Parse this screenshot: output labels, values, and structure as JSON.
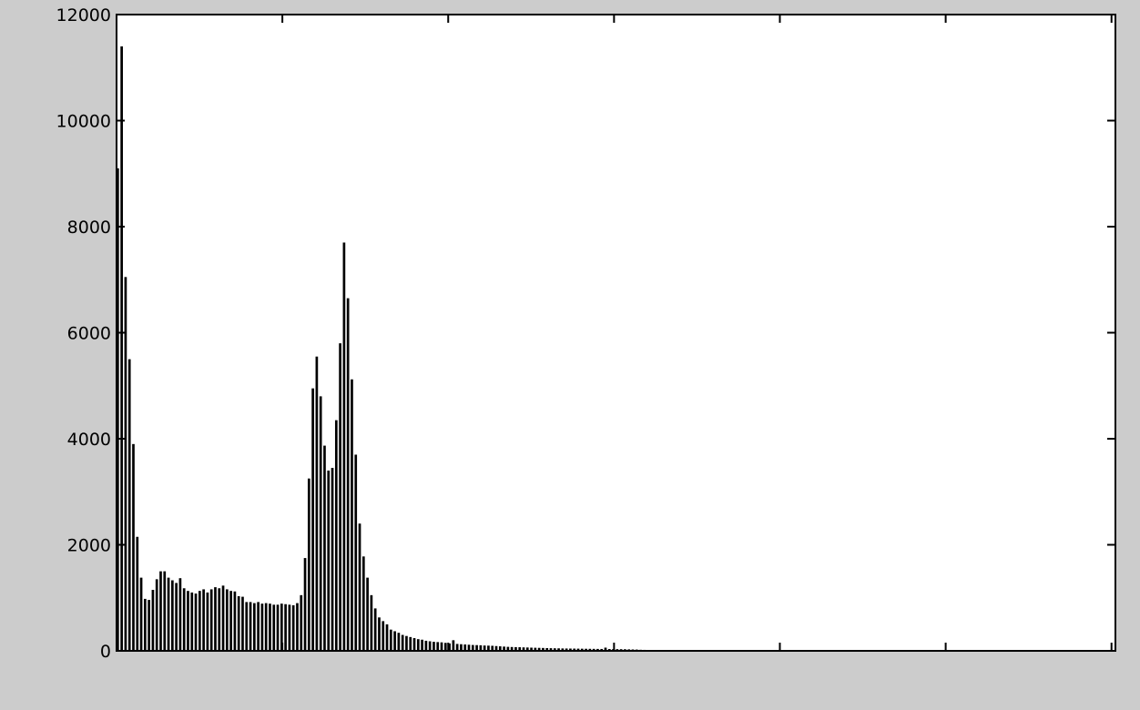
{
  "chart_data": {
    "type": "bar",
    "title": "",
    "xlabel": "",
    "ylabel": "",
    "xlim": [
      0,
      256
    ],
    "ylim": [
      0,
      12000
    ],
    "grid": false,
    "y_ticks": [
      {
        "value": 0,
        "label": "0"
      },
      {
        "value": 2000,
        "label": "2000"
      },
      {
        "value": 4000,
        "label": "4000"
      },
      {
        "value": 6000,
        "label": "6000"
      },
      {
        "value": 8000,
        "label": "8000"
      },
      {
        "value": 10000,
        "label": "10000"
      },
      {
        "value": 12000,
        "label": "12000"
      }
    ],
    "x_ticks": [
      0,
      42.5,
      85,
      127.5,
      170,
      212.5,
      255
    ],
    "bar_color": "#000000",
    "values": [
      9100,
      11400,
      7050,
      5500,
      3900,
      2150,
      1380,
      980,
      960,
      1150,
      1350,
      1500,
      1500,
      1380,
      1330,
      1280,
      1370,
      1180,
      1130,
      1100,
      1080,
      1130,
      1160,
      1100,
      1160,
      1200,
      1180,
      1230,
      1160,
      1130,
      1120,
      1030,
      1020,
      920,
      920,
      900,
      920,
      890,
      900,
      890,
      870,
      870,
      890,
      880,
      870,
      860,
      900,
      1050,
      1750,
      3250,
      4950,
      5550,
      4800,
      3870,
      3400,
      3450,
      4350,
      5800,
      7700,
      6650,
      5120,
      3700,
      2400,
      1780,
      1380,
      1050,
      800,
      630,
      560,
      500,
      400,
      370,
      340,
      300,
      280,
      260,
      240,
      220,
      210,
      190,
      180,
      170,
      165,
      160,
      150,
      140,
      200,
      130,
      125,
      120,
      115,
      110,
      108,
      105,
      100,
      98,
      95,
      90,
      85,
      80,
      75,
      72,
      70,
      68,
      65,
      63,
      60,
      58,
      56,
      54,
      52,
      50,
      48,
      47,
      45,
      44,
      43,
      42,
      41,
      40,
      39,
      38,
      37,
      36,
      35,
      60,
      34,
      33,
      32,
      31,
      30,
      28,
      26,
      24,
      20,
      18
    ]
  }
}
